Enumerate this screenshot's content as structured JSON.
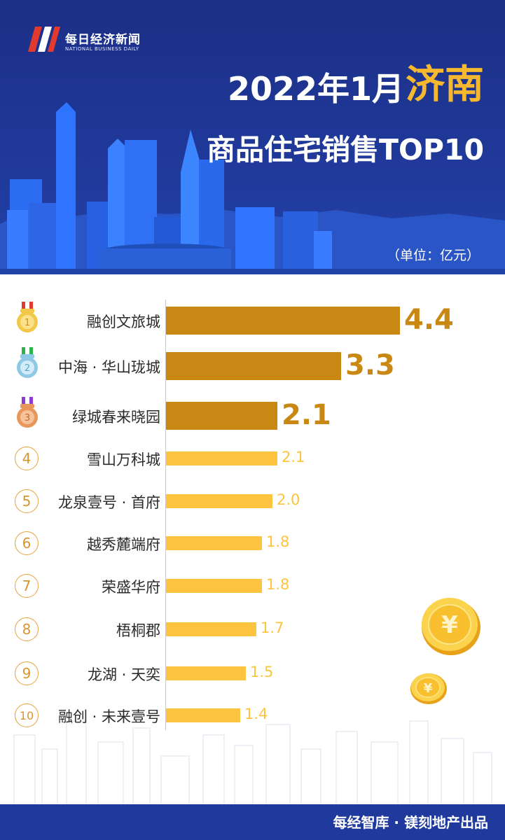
{
  "header": {
    "logo_text_cn": "每日经济新闻",
    "logo_text_en": "NATIONAL BUSINESS DAILY",
    "title_main": "2022年1月",
    "title_city": "济南",
    "title_sub": "商品住宅销售TOP10",
    "unit": "（单位：亿元）"
  },
  "colors": {
    "header_bg": "#1f3a9c",
    "accent_yellow": "#f5b82e",
    "top3_bar": "#c98714",
    "other_bar": "#fdc43f"
  },
  "chart_data": {
    "type": "bar",
    "orientation": "horizontal",
    "title": "2022年1月济南商品住宅销售TOP10",
    "unit": "（单位：亿元）",
    "ranks": [
      "1",
      "2",
      "3",
      "4",
      "5",
      "6",
      "7",
      "8",
      "9",
      "10"
    ],
    "categories": [
      "融创文旅城",
      "中海 · 华山珑城",
      "绿城春来晓园",
      "雪山万科城",
      "龙泉壹号 · 首府",
      "越秀麓端府",
      "荣盛华府",
      "梧桐郡",
      "龙湖 · 天奕",
      "融创 · 未来壹号"
    ],
    "values": [
      4.4,
      3.3,
      2.1,
      2.1,
      2.0,
      1.8,
      1.8,
      1.7,
      1.5,
      1.4
    ],
    "value_labels": [
      "4.4",
      "3.3",
      "2.1",
      "2.1",
      "2.0",
      "1.8",
      "1.8",
      "1.7",
      "1.5",
      "1.4"
    ],
    "xlim": [
      0,
      4.4
    ],
    "highlight_top": 3,
    "grid": false,
    "legend": "none"
  },
  "footer": {
    "text": "每经智库 · 镁刻地产出品"
  }
}
